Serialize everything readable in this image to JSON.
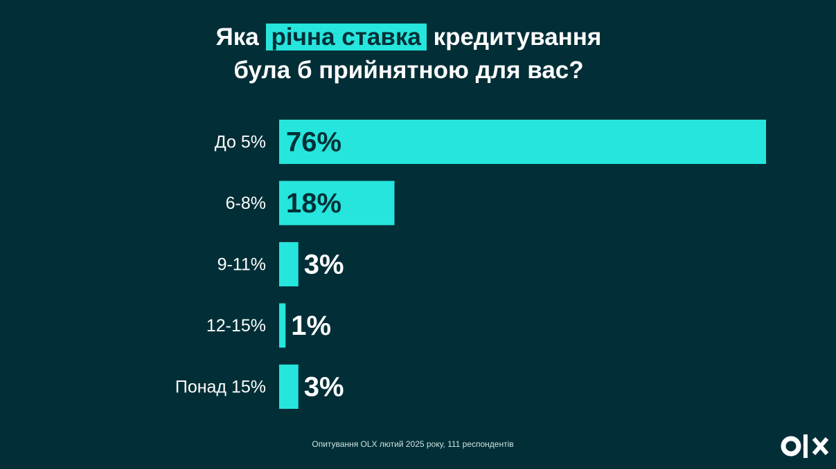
{
  "chart_data": {
    "type": "bar",
    "orientation": "horizontal",
    "title": [
      "Яка",
      "річна ставка",
      "кредитування",
      "була б прийнятною для вас?"
    ],
    "title_highlight": 1,
    "categories": [
      "До 5%",
      "6-8%",
      "9-11%",
      "12-15%",
      "Понад 15%"
    ],
    "values": [
      76,
      18,
      3,
      1,
      3
    ],
    "value_labels": [
      "76%",
      "18%",
      "3%",
      "1%",
      "3%"
    ],
    "color": "#26e5dc",
    "footnote": "Опитування OLX лютий 2025 року, 111 респондентів"
  }
}
